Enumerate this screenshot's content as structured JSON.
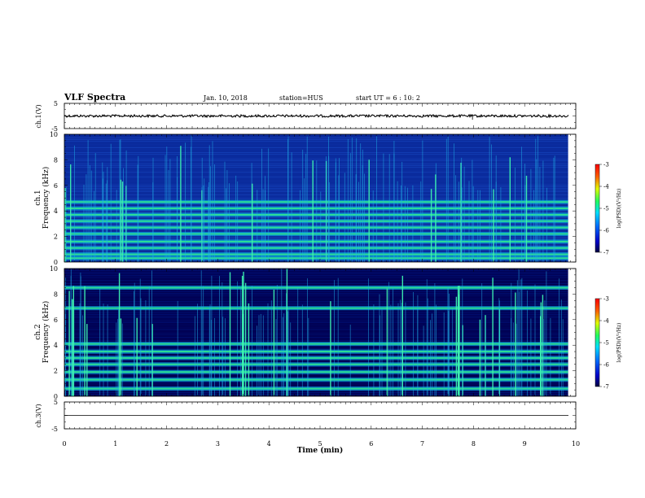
{
  "header": {
    "title": "VLF Spectra",
    "date": "Jan. 10, 2018",
    "station": "station=HUS",
    "start": "start UT =  6 : 10: 2"
  },
  "chart_data": [
    {
      "type": "line",
      "panel": "ch1-waveform",
      "ylabel": "ch.1(V)",
      "ylim": [
        -5,
        5
      ],
      "yticks": [
        "5",
        "-5"
      ],
      "xlim": [
        0,
        10
      ],
      "level": 0,
      "series": [
        {
          "x": [
            0,
            9.85
          ],
          "y": [
            0,
            0
          ]
        }
      ],
      "events": [
        {
          "x": 7.98,
          "y": -1.5
        }
      ]
    },
    {
      "type": "heatmap",
      "panel": "ch1-spectrogram",
      "ylabel": "ch.1\nFrequency (kHz)",
      "ylim": [
        0,
        10
      ],
      "yticks": [
        "0",
        "2",
        "4",
        "6",
        "8",
        "10"
      ],
      "xlim": [
        0,
        10
      ],
      "data_xmax": 9.85,
      "bands_khz": [
        0.3,
        0.6,
        1.1,
        1.6,
        2.2,
        2.7,
        3.2,
        3.7,
        4.2,
        4.7
      ],
      "colorbar": {
        "label": "log(PSD)(V²/Hz)",
        "range": [
          -7,
          -3
        ],
        "ticks": [
          "-3",
          "-4",
          "-5",
          "-6",
          "-7"
        ]
      }
    },
    {
      "type": "heatmap",
      "panel": "ch2-spectrogram",
      "ylabel": "ch.2\nFrequency (kHz)",
      "ylim": [
        0,
        10
      ],
      "yticks": [
        "0",
        "2",
        "4",
        "6",
        "8",
        "10"
      ],
      "xlim": [
        0,
        10
      ],
      "data_xmax": 9.85,
      "bands_khz": [
        0.6,
        1.3,
        1.9,
        2.5,
        3.0,
        3.5,
        4.1,
        6.9,
        8.5
      ],
      "colorbar": {
        "label": "log(PSD)(V²/Hz)",
        "range": [
          -7,
          -3
        ],
        "ticks": [
          "-3",
          "-4",
          "-5",
          "-6",
          "-7"
        ]
      }
    },
    {
      "type": "line",
      "panel": "ch3-waveform",
      "ylabel": "ch.3(V)",
      "ylim": [
        -5,
        5
      ],
      "yticks": [
        "5",
        "-5"
      ],
      "xlim": [
        0,
        10
      ],
      "level": 0,
      "series": [
        {
          "x": [
            0,
            9.85
          ],
          "y": [
            0,
            0
          ]
        }
      ]
    }
  ],
  "xaxis": {
    "label": "Time (min)",
    "ticks": [
      "0",
      "1",
      "2",
      "3",
      "4",
      "5",
      "6",
      "7",
      "8",
      "9",
      "10"
    ]
  },
  "colors": {
    "background_low": "#000046",
    "background_mid": "#0a2aa0",
    "band": "#22e0a0",
    "spike": "#40ffa0"
  }
}
